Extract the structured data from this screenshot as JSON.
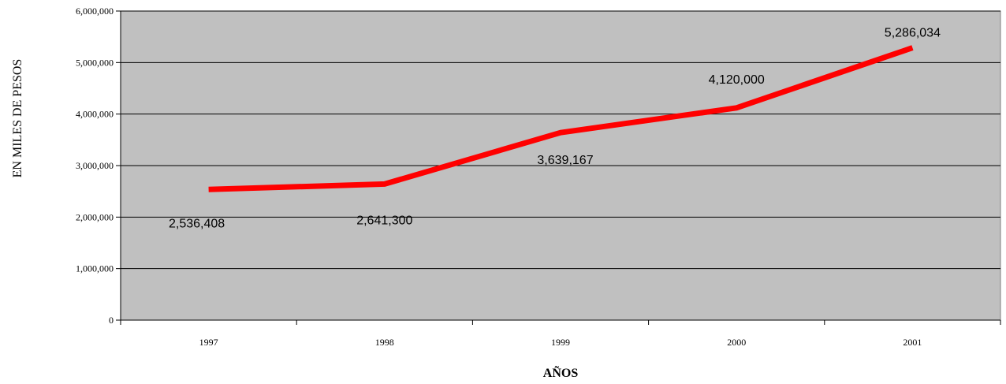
{
  "chart_data": {
    "type": "line",
    "title": "",
    "xlabel": "AÑOS",
    "ylabel": "EN MILES DE PESOS",
    "categories": [
      "1997",
      "1998",
      "1999",
      "2000",
      "2001"
    ],
    "series": [
      {
        "values": [
          2536408,
          2641300,
          3639167,
          4120000,
          5286034
        ],
        "labels": [
          "2,536,408",
          "2,641,300",
          "3,639,167",
          "4,120,000",
          "5,286,034"
        ],
        "color": "#ff0000"
      }
    ],
    "ylim": [
      0,
      6000000
    ],
    "yticks": [
      0,
      1000000,
      2000000,
      3000000,
      4000000,
      5000000,
      6000000
    ],
    "ytick_labels": [
      "0",
      "1,000,000",
      "2,000,000",
      "3,000,000",
      "4,000,000",
      "5,000,000",
      "6,000,000"
    ],
    "grid": true,
    "plot_background": "#c0c0c0",
    "legend": "none"
  }
}
